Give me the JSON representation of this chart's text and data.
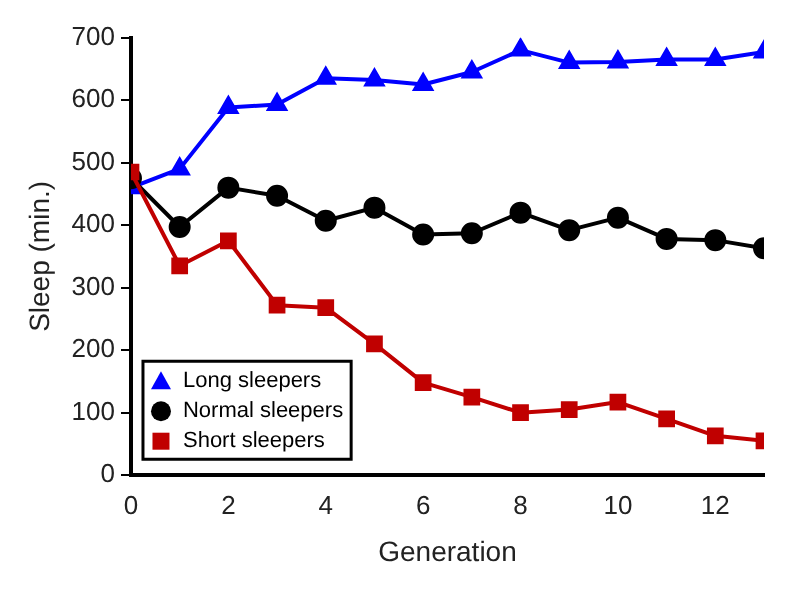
{
  "chart_data": {
    "type": "line",
    "xlabel": "Generation",
    "ylabel": "Sleep (min.)",
    "x": [
      0,
      1,
      2,
      3,
      4,
      5,
      6,
      7,
      8,
      9,
      10,
      11,
      12,
      13
    ],
    "xlim": [
      0,
      13
    ],
    "xticks": [
      0,
      2,
      4,
      6,
      8,
      10,
      12
    ],
    "ylim": [
      0,
      700
    ],
    "yticks": [
      0,
      100,
      200,
      300,
      400,
      500,
      600,
      700
    ],
    "grid": false,
    "legend": "bottom left",
    "series": [
      {
        "name": "Long sleepers",
        "color": "#0000ff",
        "marker": "triangle",
        "values": [
          460,
          490,
          588,
          593,
          635,
          632,
          625,
          645,
          680,
          660,
          661,
          665,
          665,
          677
        ]
      },
      {
        "name": "Normal sleepers",
        "color": "#000000",
        "marker": "circle",
        "values": [
          475,
          397,
          460,
          447,
          407,
          428,
          385,
          387,
          420,
          392,
          412,
          378,
          376,
          363
        ]
      },
      {
        "name": "Short sleepers",
        "color": "#c00000",
        "marker": "square",
        "values": [
          485,
          335,
          375,
          272,
          268,
          210,
          148,
          125,
          100,
          105,
          117,
          90,
          63,
          55
        ]
      }
    ]
  }
}
